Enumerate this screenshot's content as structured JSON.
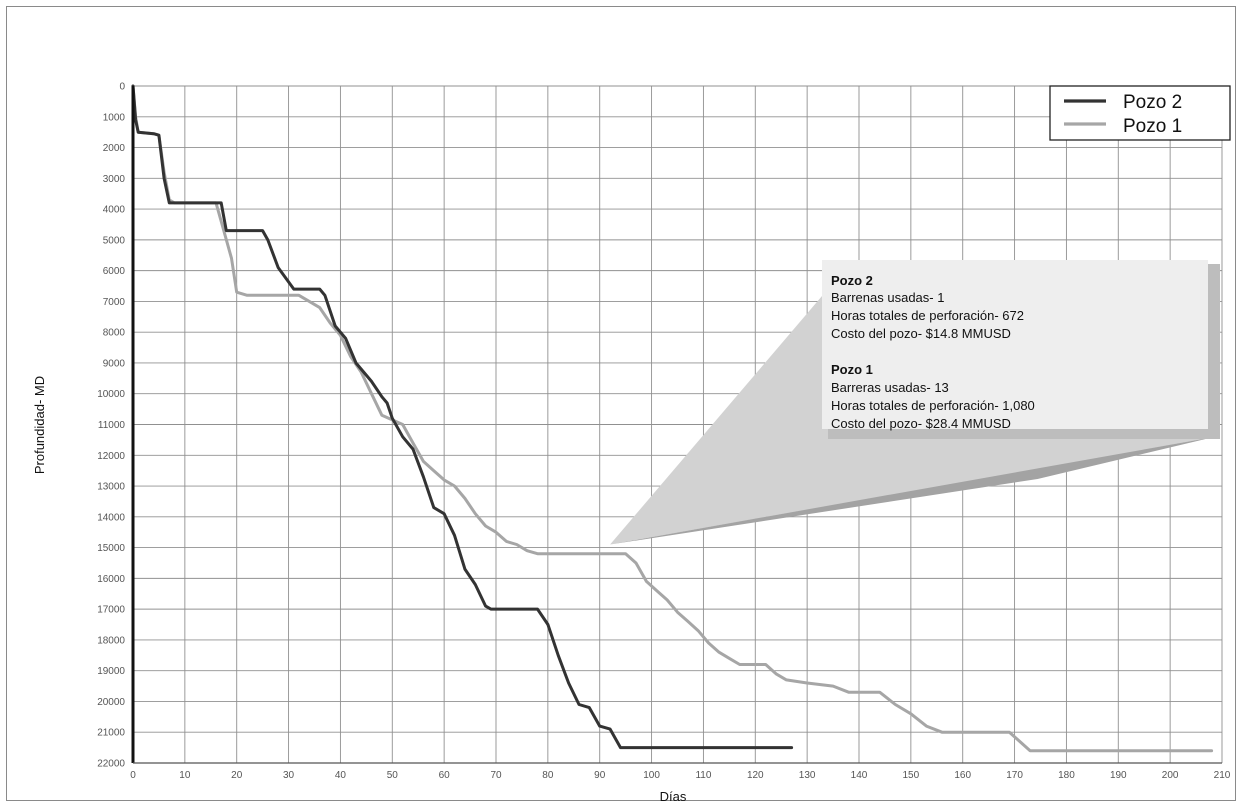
{
  "chart_data": {
    "type": "line",
    "xlabel": "Días",
    "ylabel": "Profundidad- MD",
    "xlim": [
      0,
      210
    ],
    "ylim": [
      0,
      22000
    ],
    "y_inverted": true,
    "x_ticks": [
      0,
      10,
      20,
      30,
      40,
      50,
      60,
      70,
      80,
      90,
      100,
      110,
      120,
      130,
      140,
      150,
      160,
      170,
      180,
      190,
      200,
      210
    ],
    "y_ticks": [
      0,
      1000,
      2000,
      3000,
      4000,
      5000,
      6000,
      7000,
      8000,
      9000,
      10000,
      11000,
      12000,
      13000,
      14000,
      15000,
      16000,
      17000,
      18000,
      19000,
      20000,
      21000,
      22000
    ],
    "grid": true,
    "legend_position": "top-right",
    "series": [
      {
        "name": "Pozo 2",
        "color": "#333333",
        "points": [
          [
            0,
            0
          ],
          [
            0.5,
            1100
          ],
          [
            1,
            1500
          ],
          [
            4,
            1550
          ],
          [
            5,
            1600
          ],
          [
            6,
            3000
          ],
          [
            7,
            3800
          ],
          [
            8,
            3800
          ],
          [
            17,
            3800
          ],
          [
            18,
            4700
          ],
          [
            25,
            4700
          ],
          [
            26,
            5000
          ],
          [
            28,
            5900
          ],
          [
            31,
            6600
          ],
          [
            36,
            6600
          ],
          [
            37,
            6800
          ],
          [
            39,
            7800
          ],
          [
            41,
            8200
          ],
          [
            43,
            9000
          ],
          [
            46,
            9600
          ],
          [
            48,
            10100
          ],
          [
            49,
            10300
          ],
          [
            50,
            10800
          ],
          [
            52,
            11400
          ],
          [
            54,
            11800
          ],
          [
            56,
            12700
          ],
          [
            58,
            13700
          ],
          [
            60,
            13900
          ],
          [
            62,
            14600
          ],
          [
            64,
            15700
          ],
          [
            66,
            16200
          ],
          [
            68,
            16900
          ],
          [
            69,
            17000
          ],
          [
            78,
            17000
          ],
          [
            80,
            17500
          ],
          [
            82,
            18500
          ],
          [
            84,
            19400
          ],
          [
            86,
            20100
          ],
          [
            88,
            20200
          ],
          [
            90,
            20800
          ],
          [
            92,
            20900
          ],
          [
            94,
            21500
          ],
          [
            96,
            21500
          ],
          [
            127,
            21500
          ]
        ]
      },
      {
        "name": "Pozo 1",
        "color": "#a6a6a6",
        "points": [
          [
            0,
            0
          ],
          [
            0.5,
            1000
          ],
          [
            1,
            1500
          ],
          [
            4,
            1550
          ],
          [
            5,
            1600
          ],
          [
            6,
            2800
          ],
          [
            7,
            3700
          ],
          [
            8,
            3800
          ],
          [
            16,
            3800
          ],
          [
            17,
            4400
          ],
          [
            19,
            5600
          ],
          [
            20,
            6700
          ],
          [
            22,
            6800
          ],
          [
            32,
            6800
          ],
          [
            34,
            7000
          ],
          [
            36,
            7200
          ],
          [
            38,
            7700
          ],
          [
            40,
            8100
          ],
          [
            42,
            8800
          ],
          [
            44,
            9300
          ],
          [
            46,
            10000
          ],
          [
            48,
            10700
          ],
          [
            52,
            11000
          ],
          [
            54,
            11600
          ],
          [
            56,
            12200
          ],
          [
            58,
            12500
          ],
          [
            60,
            12800
          ],
          [
            62,
            13000
          ],
          [
            64,
            13400
          ],
          [
            66,
            13900
          ],
          [
            68,
            14300
          ],
          [
            70,
            14500
          ],
          [
            72,
            14800
          ],
          [
            74,
            14900
          ],
          [
            76,
            15100
          ],
          [
            78,
            15200
          ],
          [
            95,
            15200
          ],
          [
            97,
            15500
          ],
          [
            99,
            16100
          ],
          [
            101,
            16400
          ],
          [
            103,
            16700
          ],
          [
            105,
            17100
          ],
          [
            107,
            17400
          ],
          [
            109,
            17700
          ],
          [
            111,
            18100
          ],
          [
            113,
            18400
          ],
          [
            115,
            18600
          ],
          [
            117,
            18800
          ],
          [
            122,
            18800
          ],
          [
            124,
            19100
          ],
          [
            126,
            19300
          ],
          [
            130,
            19400
          ],
          [
            135,
            19500
          ],
          [
            138,
            19700
          ],
          [
            144,
            19700
          ],
          [
            147,
            20100
          ],
          [
            150,
            20400
          ],
          [
            153,
            20800
          ],
          [
            156,
            21000
          ],
          [
            169,
            21000
          ],
          [
            171,
            21300
          ],
          [
            173,
            21600
          ],
          [
            208,
            21600
          ]
        ]
      }
    ],
    "annotation": {
      "pointer_at": [
        92,
        14900
      ],
      "pozo2": {
        "title": "Pozo 2",
        "line1": "Barrenas usadas- 1",
        "line2": "Horas totales de perforación- 672",
        "line3": "Costo del pozo- $14.8 MMUSD"
      },
      "pozo1": {
        "title": "Pozo 1",
        "line1": "Barreras usadas- 13",
        "line2": "Horas totales de perforación- 1,080",
        "line3": "Costo del pozo-  $28.4 MMUSD"
      }
    }
  }
}
